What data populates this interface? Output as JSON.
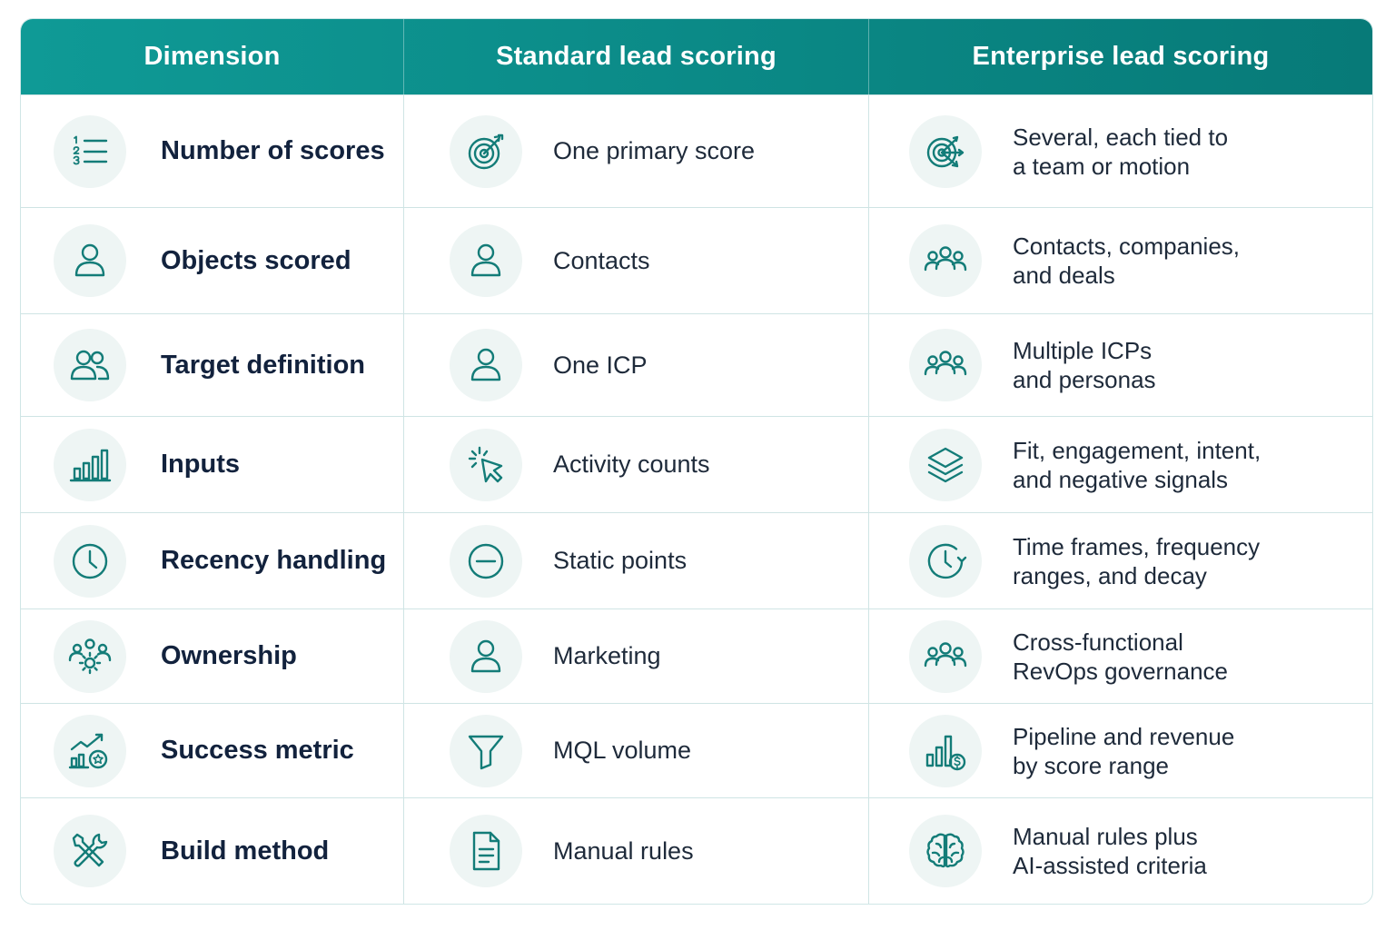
{
  "header": {
    "col1": "Dimension",
    "col2": "Standard lead scoring",
    "col3": "Enterprise lead scoring"
  },
  "rows": [
    {
      "dimension": "Number of scores",
      "dimension_icon": "numbered-list-icon",
      "standard": "One primary score",
      "standard_icon": "target-icon",
      "enterprise": [
        "Several, each tied to",
        "a team or motion"
      ],
      "enterprise_icon": "multi-target-icon"
    },
    {
      "dimension": "Objects scored",
      "dimension_icon": "person-icon",
      "standard": "Contacts",
      "standard_icon": "person-icon",
      "enterprise": [
        "Contacts, companies,",
        "and deals"
      ],
      "enterprise_icon": "group-icon"
    },
    {
      "dimension": "Target definition",
      "dimension_icon": "two-people-icon",
      "standard": "One ICP",
      "standard_icon": "person-icon",
      "enterprise": [
        "Multiple ICPs",
        "and personas"
      ],
      "enterprise_icon": "group-icon"
    },
    {
      "dimension": "Inputs",
      "dimension_icon": "bar-chart-icon",
      "standard": "Activity counts",
      "standard_icon": "cursor-click-icon",
      "enterprise": [
        "Fit, engagement, intent,",
        "and negative signals"
      ],
      "enterprise_icon": "layers-icon"
    },
    {
      "dimension": "Recency handling",
      "dimension_icon": "clock-icon",
      "standard": "Static points",
      "standard_icon": "minus-circle-icon",
      "enterprise": [
        "Time frames, frequency",
        "ranges, and decay"
      ],
      "enterprise_icon": "clock-refresh-icon"
    },
    {
      "dimension": "Ownership",
      "dimension_icon": "team-gear-icon",
      "standard": "Marketing",
      "standard_icon": "person-icon",
      "enterprise": [
        "Cross-functional",
        "RevOps governance"
      ],
      "enterprise_icon": "group-icon"
    },
    {
      "dimension": "Success metric",
      "dimension_icon": "growth-chart-star-icon",
      "standard": "MQL volume",
      "standard_icon": "funnel-icon",
      "enterprise": [
        "Pipeline and revenue",
        "by score range"
      ],
      "enterprise_icon": "chart-dollar-icon"
    },
    {
      "dimension": "Build method",
      "dimension_icon": "tools-icon",
      "standard": "Manual rules",
      "standard_icon": "document-icon",
      "enterprise": [
        "Manual rules plus",
        "AI-assisted criteria"
      ],
      "enterprise_icon": "brain-icon"
    }
  ]
}
